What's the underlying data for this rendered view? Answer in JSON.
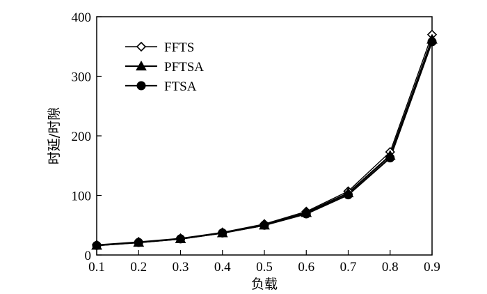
{
  "chart_data": {
    "type": "line",
    "x": [
      0.1,
      0.2,
      0.3,
      0.4,
      0.5,
      0.6,
      0.7,
      0.8,
      0.9
    ],
    "xlabel": "负载",
    "ylabel": "时延/时隙",
    "xlim": [
      0.1,
      0.9
    ],
    "ylim": [
      0,
      400
    ],
    "xticks": [
      "0.1",
      "0.2",
      "0.3",
      "0.4",
      "0.5",
      "0.6",
      "0.7",
      "0.8",
      "0.9"
    ],
    "yticks": [
      "0",
      "100",
      "200",
      "300",
      "400"
    ],
    "grid": false,
    "legend_position": "top-left",
    "series": [
      {
        "name": "FFTS",
        "marker": "diamond-open",
        "values": [
          17,
          22,
          28,
          38,
          52,
          73,
          107,
          173,
          370
        ]
      },
      {
        "name": "PFTSA",
        "marker": "triangle-filled",
        "values": [
          16,
          21,
          27,
          37,
          50,
          71,
          104,
          167,
          362
        ]
      },
      {
        "name": "FTSA",
        "marker": "circle-filled",
        "values": [
          16,
          21,
          27,
          37,
          50,
          69,
          101,
          163,
          358
        ]
      }
    ]
  }
}
